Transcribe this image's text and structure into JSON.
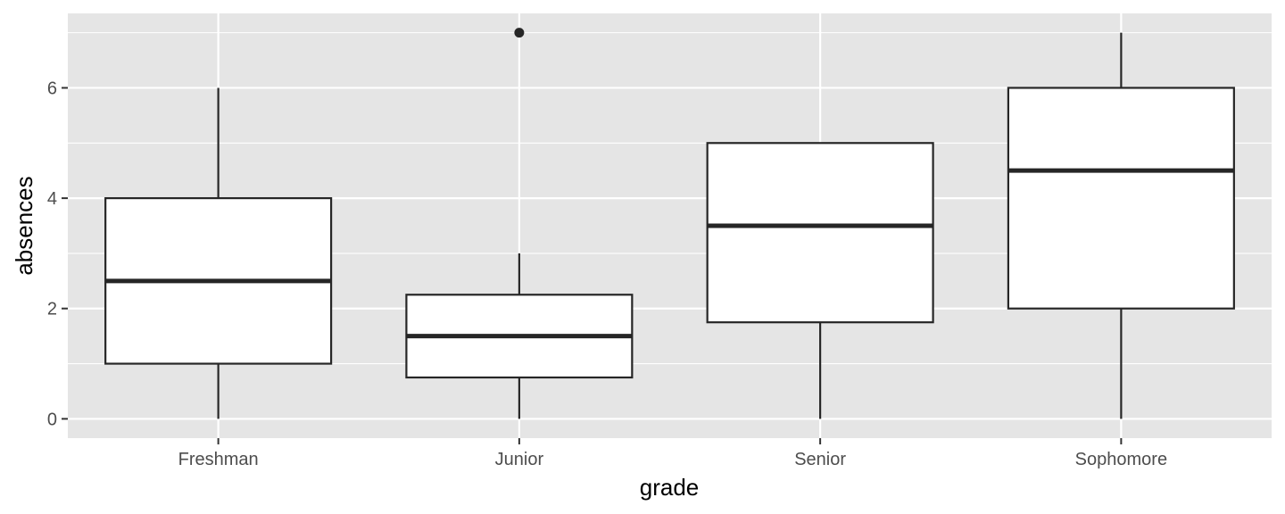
{
  "chart_data": {
    "type": "boxplot",
    "xlabel": "grade",
    "ylabel": "absences",
    "ylim": [
      -0.35,
      7.35
    ],
    "y_ticks": [
      0,
      2,
      4,
      6
    ],
    "y_minor_ticks": [
      1,
      3,
      5,
      7
    ],
    "categories": [
      "Freshman",
      "Junior",
      "Senior",
      "Sophomore"
    ],
    "boxes": [
      {
        "category": "Freshman",
        "whisker_low": 0,
        "q1": 1,
        "median": 2.5,
        "q3": 4,
        "whisker_high": 6,
        "outliers": []
      },
      {
        "category": "Junior",
        "whisker_low": 0,
        "q1": 0.75,
        "median": 1.5,
        "q3": 2.25,
        "whisker_high": 3,
        "outliers": [
          7
        ]
      },
      {
        "category": "Senior",
        "whisker_low": 0,
        "q1": 1.75,
        "median": 3.5,
        "q3": 5,
        "whisker_high": 5,
        "outliers": []
      },
      {
        "category": "Sophomore",
        "whisker_low": 0,
        "q1": 2,
        "median": 4.5,
        "q3": 6,
        "whisker_high": 7,
        "outliers": []
      }
    ],
    "grid": true,
    "legend": "none",
    "colors": {
      "panel_background": "#e5e5e5",
      "grid": "#ffffff",
      "box_fill": "#ffffff",
      "box_stroke": "#262626",
      "tick_text": "#4d4d4d",
      "axis_title": "#000000"
    }
  }
}
